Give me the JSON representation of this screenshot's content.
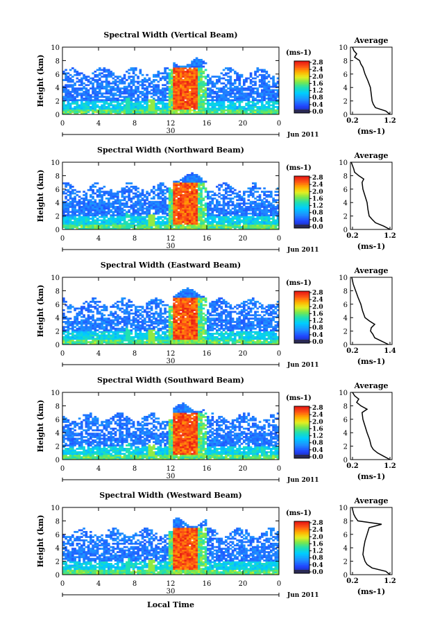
{
  "chart_data": [
    {
      "type": "heatmap",
      "title": "Spectral Width (Vertical Beam)",
      "ylabel": "Height (km)",
      "xlabel": "",
      "x_ticks": [
        "0",
        "4",
        "8",
        "12",
        "16",
        "20",
        "0"
      ],
      "y_ticks": [
        "0",
        "2",
        "4",
        "6",
        "8",
        "10"
      ],
      "ylim": [
        0,
        10
      ],
      "xlim_hours": [
        0,
        24
      ],
      "date_day": "30",
      "date_month": "Jun 2011",
      "colorbar": {
        "unit": "(ms-1)",
        "ticks": [
          "0.0",
          "0.4",
          "0.8",
          "1.2",
          "1.6",
          "2.0",
          "2.4",
          "2.8"
        ],
        "range": [
          0,
          3.0
        ]
      },
      "average_profile": {
        "title": "Average",
        "xlabel": "(ms-1)",
        "x_ticks": [
          "0.2",
          "1.2"
        ],
        "xlim": [
          0.2,
          1.2
        ],
        "height": [
          0,
          0.5,
          1,
          1.5,
          2,
          3,
          4,
          5,
          6,
          7,
          7.5,
          8,
          8.5,
          9,
          9.5,
          10
        ],
        "width": [
          1.15,
          1.05,
          0.8,
          0.75,
          0.72,
          0.7,
          0.68,
          0.62,
          0.55,
          0.5,
          0.45,
          0.42,
          0.3,
          0.35,
          0.28,
          0.25
        ]
      }
    },
    {
      "type": "heatmap",
      "title": "Spectral Width (Northward Beam)",
      "ylabel": "Height (km)",
      "xlabel": "",
      "x_ticks": [
        "0",
        "4",
        "8",
        "12",
        "16",
        "20",
        "0"
      ],
      "y_ticks": [
        "0",
        "2",
        "4",
        "6",
        "8",
        "10"
      ],
      "ylim": [
        0,
        10
      ],
      "xlim_hours": [
        0,
        24
      ],
      "date_day": "30",
      "date_month": "Jun 2011",
      "colorbar": {
        "unit": "(ms-1)",
        "ticks": [
          "0.0",
          "0.4",
          "0.8",
          "1.2",
          "1.6",
          "2.0",
          "2.4",
          "2.8"
        ],
        "range": [
          0,
          3.0
        ]
      },
      "average_profile": {
        "title": "Average",
        "xlabel": "(ms-1)",
        "x_ticks": [
          "0.2",
          "1.2"
        ],
        "xlim": [
          0.2,
          1.2
        ],
        "height": [
          0,
          0.5,
          1,
          1.5,
          2,
          3,
          4,
          5,
          6,
          7,
          7.5,
          8,
          8.5,
          9,
          9.5,
          10
        ],
        "width": [
          1.15,
          1.0,
          0.8,
          0.72,
          0.65,
          0.62,
          0.6,
          0.55,
          0.5,
          0.48,
          0.52,
          0.4,
          0.3,
          0.28,
          0.25,
          0.22
        ]
      }
    },
    {
      "type": "heatmap",
      "title": "Spectral Width (Eastward Beam)",
      "ylabel": "Height (km)",
      "xlabel": "",
      "x_ticks": [
        "0",
        "4",
        "8",
        "12",
        "16",
        "20",
        "0"
      ],
      "y_ticks": [
        "0",
        "2",
        "4",
        "6",
        "8",
        "10"
      ],
      "ylim": [
        0,
        10
      ],
      "xlim_hours": [
        0,
        24
      ],
      "date_day": "30",
      "date_month": "Jun 2011",
      "colorbar": {
        "unit": "(ms-1)",
        "ticks": [
          "0.0",
          "0.4",
          "0.8",
          "1.2",
          "1.6",
          "2.0",
          "2.4",
          "2.8"
        ],
        "range": [
          0,
          3.0
        ]
      },
      "average_profile": {
        "title": "Average",
        "xlabel": "(ms-1)",
        "x_ticks": [
          "0.2",
          "1.4"
        ],
        "xlim": [
          0.2,
          1.4
        ],
        "height": [
          0,
          0.5,
          1,
          1.5,
          2,
          2.5,
          3,
          3.5,
          4,
          5,
          6,
          7,
          8,
          9,
          10
        ],
        "width": [
          1.3,
          1.1,
          0.9,
          0.85,
          0.78,
          0.8,
          0.9,
          0.75,
          0.62,
          0.55,
          0.5,
          0.42,
          0.35,
          0.28,
          0.24
        ]
      }
    },
    {
      "type": "heatmap",
      "title": "Spectral Width (Southward Beam)",
      "ylabel": "Height (km)",
      "xlabel": "",
      "x_ticks": [
        "0",
        "4",
        "8",
        "12",
        "16",
        "20",
        "0"
      ],
      "y_ticks": [
        "0",
        "2",
        "4",
        "6",
        "8",
        "10"
      ],
      "ylim": [
        0,
        10
      ],
      "xlim_hours": [
        0,
        24
      ],
      "date_day": "30",
      "date_month": "Jun 2011",
      "colorbar": {
        "unit": "(ms-1)",
        "ticks": [
          "0.0",
          "0.4",
          "0.8",
          "1.2",
          "1.6",
          "2.0",
          "2.4",
          "2.8"
        ],
        "range": [
          0,
          3.0
        ]
      },
      "average_profile": {
        "title": "Average",
        "xlabel": "(ms-1)",
        "x_ticks": [
          "0.2",
          "1.2"
        ],
        "xlim": [
          0.2,
          1.2
        ],
        "height": [
          0,
          0.5,
          1,
          1.5,
          2,
          3,
          4,
          5,
          6,
          7,
          7.5,
          8,
          8.5,
          9,
          9.5,
          10
        ],
        "width": [
          1.15,
          1.0,
          0.85,
          0.75,
          0.7,
          0.66,
          0.6,
          0.55,
          0.5,
          0.48,
          0.6,
          0.45,
          0.35,
          0.4,
          0.3,
          0.25
        ]
      }
    },
    {
      "type": "heatmap",
      "title": "Spectral Width (Westward Beam)",
      "ylabel": "Height (km)",
      "xlabel": "Local Time",
      "x_ticks": [
        "0",
        "4",
        "8",
        "12",
        "16",
        "20",
        "0"
      ],
      "y_ticks": [
        "0",
        "2",
        "4",
        "6",
        "8",
        "10"
      ],
      "ylim": [
        0,
        10
      ],
      "xlim_hours": [
        0,
        24
      ],
      "date_day": "30",
      "date_month": "Jun 2011",
      "colorbar": {
        "unit": "(ms-1)",
        "ticks": [
          "0.0",
          "0.4",
          "0.8",
          "1.2",
          "1.6",
          "2.0",
          "2.4",
          "2.8"
        ],
        "range": [
          0,
          3.0
        ]
      },
      "average_profile": {
        "title": "Average",
        "xlabel": "(ms-1)",
        "x_ticks": [
          "0.2",
          "1.2"
        ],
        "xlim": [
          0.2,
          1.2
        ],
        "height": [
          0,
          0.5,
          1,
          1.5,
          2,
          3,
          4,
          5,
          6,
          7,
          7.5,
          8,
          8.5,
          9,
          9.5,
          10
        ],
        "width": [
          1.15,
          1.05,
          0.72,
          0.6,
          0.55,
          0.5,
          0.52,
          0.55,
          0.6,
          0.65,
          0.95,
          0.38,
          0.32,
          0.28,
          0.26,
          0.24
        ]
      }
    }
  ]
}
